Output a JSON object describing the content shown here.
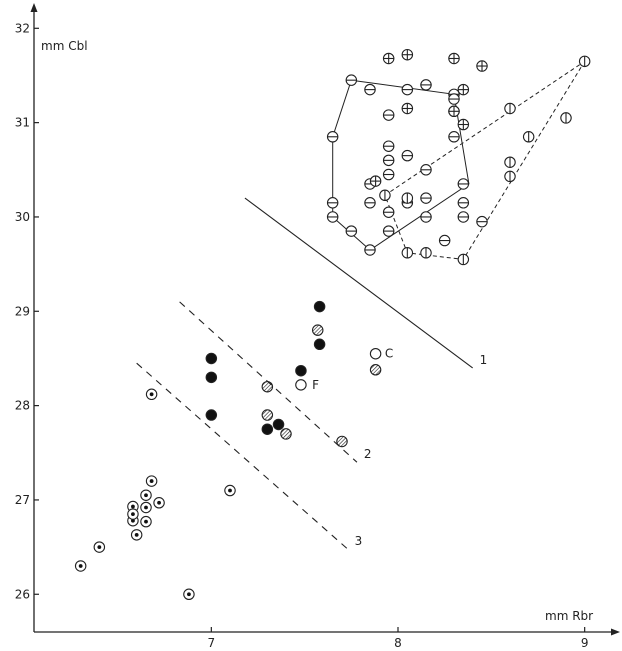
{
  "chart_data": {
    "type": "scatter",
    "xlabel": "mm Rbr",
    "ylabel": "mm Cbl",
    "xlim": [
      6.05,
      9.2
    ],
    "ylim": [
      25.6,
      32.3
    ],
    "xticks": [
      7,
      8,
      9
    ],
    "yticks": [
      26,
      27,
      28,
      29,
      30,
      31,
      32
    ],
    "x_tick_labels": [
      "7",
      "8",
      "9"
    ],
    "y_tick_labels": [
      "26",
      "27",
      "28",
      "29",
      "30",
      "31",
      "32"
    ],
    "grid": false,
    "point_groups": [
      {
        "symbol": "dotted-ring",
        "points": [
          [
            6.3,
            26.3
          ],
          [
            6.4,
            26.5
          ],
          [
            6.58,
            26.93
          ],
          [
            6.58,
            26.78
          ],
          [
            6.6,
            26.63
          ],
          [
            6.58,
            26.85
          ],
          [
            6.65,
            26.92
          ],
          [
            6.65,
            26.77
          ],
          [
            6.65,
            27.05
          ],
          [
            6.68,
            27.2
          ],
          [
            6.72,
            26.97
          ],
          [
            6.68,
            28.12
          ],
          [
            6.88,
            26.0
          ],
          [
            7.1,
            27.1
          ]
        ]
      },
      {
        "symbol": "filled",
        "points": [
          [
            7.0,
            28.5
          ],
          [
            7.0,
            28.3
          ],
          [
            7.0,
            27.9
          ],
          [
            7.3,
            27.75
          ],
          [
            7.36,
            27.8
          ],
          [
            7.48,
            28.37
          ],
          [
            7.58,
            28.65
          ],
          [
            7.58,
            29.05
          ]
        ]
      },
      {
        "symbol": "hatched",
        "points": [
          [
            7.3,
            28.2
          ],
          [
            7.3,
            27.9
          ],
          [
            7.4,
            27.7
          ],
          [
            7.57,
            28.8
          ],
          [
            7.7,
            27.62
          ],
          [
            7.88,
            28.38
          ]
        ]
      },
      {
        "symbol": "open",
        "points": [
          [
            7.48,
            28.22
          ],
          [
            7.88,
            28.55
          ]
        ]
      },
      {
        "symbol": "horizontal-bar",
        "points": [
          [
            7.75,
            31.45
          ],
          [
            7.85,
            31.35
          ],
          [
            8.05,
            31.35
          ],
          [
            8.15,
            31.4
          ],
          [
            8.3,
            31.3
          ],
          [
            8.3,
            31.25
          ],
          [
            7.65,
            30.85
          ],
          [
            7.65,
            30.15
          ],
          [
            7.65,
            30.0
          ],
          [
            7.75,
            29.85
          ],
          [
            7.85,
            29.65
          ],
          [
            7.85,
            30.35
          ],
          [
            7.85,
            30.15
          ],
          [
            7.95,
            31.08
          ],
          [
            7.95,
            30.75
          ],
          [
            7.95,
            30.6
          ],
          [
            7.95,
            30.45
          ],
          [
            7.95,
            30.05
          ],
          [
            7.95,
            29.85
          ],
          [
            8.05,
            30.65
          ],
          [
            8.05,
            30.15
          ],
          [
            8.15,
            30.5
          ],
          [
            8.15,
            30.2
          ],
          [
            8.15,
            30.0
          ],
          [
            8.25,
            29.75
          ],
          [
            8.35,
            30.15
          ],
          [
            8.35,
            30.0
          ],
          [
            8.45,
            29.95
          ],
          [
            8.3,
            31.12
          ],
          [
            8.3,
            30.85
          ],
          [
            8.35,
            30.35
          ]
        ]
      },
      {
        "symbol": "plus",
        "points": [
          [
            7.95,
            31.68
          ],
          [
            8.05,
            31.72
          ],
          [
            8.3,
            31.68
          ],
          [
            8.35,
            31.35
          ],
          [
            8.3,
            31.12
          ],
          [
            8.35,
            30.98
          ],
          [
            8.05,
            31.15
          ],
          [
            8.45,
            31.6
          ],
          [
            7.88,
            30.38
          ]
        ]
      },
      {
        "symbol": "vertical-bar",
        "points": [
          [
            8.05,
            29.62
          ],
          [
            8.15,
            29.62
          ],
          [
            8.05,
            30.2
          ],
          [
            8.35,
            29.55
          ],
          [
            8.6,
            31.15
          ],
          [
            8.7,
            30.85
          ],
          [
            8.6,
            30.58
          ],
          [
            8.6,
            30.43
          ],
          [
            8.9,
            31.05
          ],
          [
            9.0,
            31.65
          ],
          [
            7.93,
            30.23
          ]
        ]
      }
    ],
    "polygons": [
      {
        "style": "solid",
        "points": [
          [
            7.75,
            31.45
          ],
          [
            8.3,
            31.3
          ],
          [
            8.38,
            30.35
          ],
          [
            7.85,
            29.65
          ],
          [
            7.65,
            30.0
          ],
          [
            7.65,
            30.85
          ]
        ]
      },
      {
        "style": "dashed",
        "points": [
          [
            9.0,
            31.65
          ],
          [
            8.35,
            29.55
          ],
          [
            8.05,
            29.62
          ],
          [
            7.93,
            30.23
          ]
        ]
      }
    ],
    "lines": [
      {
        "label": "1",
        "style": "solid",
        "points": [
          [
            7.18,
            30.2
          ],
          [
            8.4,
            28.4
          ]
        ]
      },
      {
        "label": "2",
        "style": "dashed",
        "points": [
          [
            6.83,
            29.1
          ],
          [
            7.78,
            27.4
          ]
        ]
      },
      {
        "label": "3",
        "style": "dashed",
        "points": [
          [
            6.6,
            28.45
          ],
          [
            7.73,
            26.48
          ]
        ]
      }
    ],
    "annotations": [
      {
        "text": "C",
        "x": 7.93,
        "y": 28.55
      },
      {
        "text": "F",
        "x": 7.54,
        "y": 28.22
      }
    ]
  }
}
